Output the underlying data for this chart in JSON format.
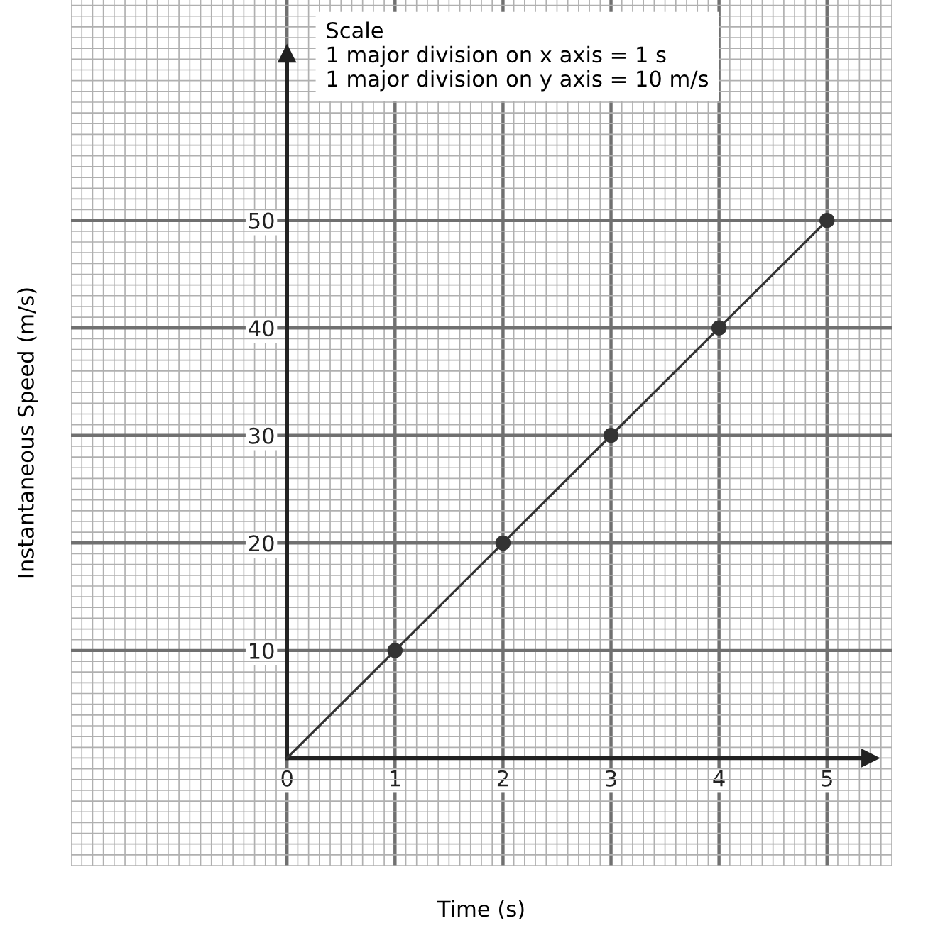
{
  "chart_data": {
    "type": "line",
    "xlabel": "Time (s)",
    "ylabel": "Instantaneous Speed (m/s)",
    "annotations": [
      "Scale\n1 major division on x axis = 1 s\n1 major division on y axis = 10 m/s"
    ],
    "series": [
      {
        "color": "#333333",
        "x": [
          0,
          1,
          2,
          3,
          4,
          5
        ],
        "values": [
          0,
          10,
          20,
          30,
          40,
          50
        ],
        "marker": "none"
      },
      {
        "type": "scatter",
        "color": "#333333",
        "x": [
          1,
          2,
          3,
          4,
          5
        ],
        "values": [
          10,
          20,
          30,
          40,
          50
        ],
        "marker": "circle"
      }
    ],
    "xlim": [
      -2,
      5.6
    ],
    "ylim": [
      -10,
      70.5
    ],
    "xticks": [
      0,
      1,
      2,
      3,
      4,
      5
    ],
    "yticks": [
      10,
      20,
      30,
      40,
      50
    ],
    "grid": true,
    "legend": false
  }
}
